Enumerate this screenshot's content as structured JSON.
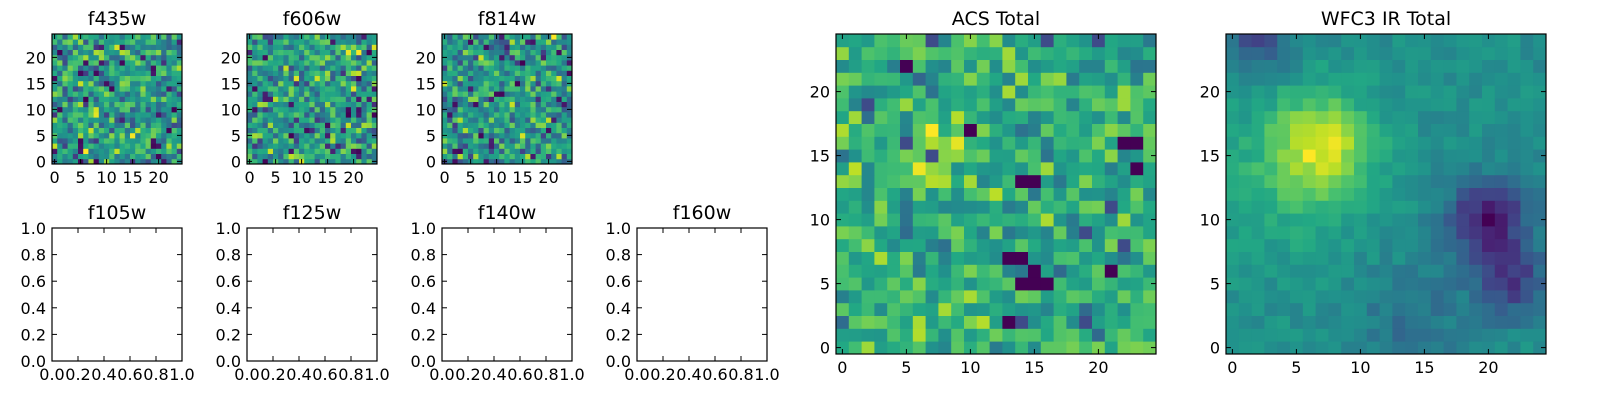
{
  "chart_data": [
    {
      "type": "heatmap",
      "title": "f435w",
      "xlim": [
        -0.5,
        24.5
      ],
      "ylim": [
        -0.5,
        24.5
      ],
      "x_ticks": [
        "0",
        "5",
        "10",
        "15",
        "20"
      ],
      "y_ticks": [
        "0",
        "5",
        "10",
        "15",
        "20"
      ],
      "grid_size": [
        25,
        25
      ],
      "values": "pseudo-random noise field, no visible structure",
      "colormap": "viridis"
    },
    {
      "type": "heatmap",
      "title": "f606w",
      "xlim": [
        -0.5,
        24.5
      ],
      "ylim": [
        -0.5,
        24.5
      ],
      "x_ticks": [
        "0",
        "5",
        "10",
        "15",
        "20"
      ],
      "y_ticks": [
        "0",
        "5",
        "10",
        "15",
        "20"
      ],
      "grid_size": [
        25,
        25
      ],
      "values": "pseudo-random noise field, no visible structure",
      "colormap": "viridis"
    },
    {
      "type": "heatmap",
      "title": "f814w",
      "xlim": [
        -0.5,
        24.5
      ],
      "ylim": [
        -0.5,
        24.5
      ],
      "x_ticks": [
        "0",
        "5",
        "10",
        "15",
        "20"
      ],
      "y_ticks": [
        "0",
        "5",
        "10",
        "15",
        "20"
      ],
      "grid_size": [
        25,
        25
      ],
      "values": "pseudo-random noise field, no visible structure",
      "colormap": "viridis"
    },
    {
      "type": "heatmap",
      "title": "f105w",
      "xlim": [
        0,
        1
      ],
      "ylim": [
        0,
        1
      ],
      "x_ticks": [
        "0.0",
        "0.2",
        "0.4",
        "0.6",
        "0.8",
        "1.0"
      ],
      "y_ticks": [
        "0.0",
        "0.2",
        "0.4",
        "0.6",
        "0.8",
        "1.0"
      ],
      "empty": true
    },
    {
      "type": "heatmap",
      "title": "f125w",
      "xlim": [
        0,
        1
      ],
      "ylim": [
        0,
        1
      ],
      "x_ticks": [
        "0.0",
        "0.2",
        "0.4",
        "0.6",
        "0.8",
        "1.0"
      ],
      "y_ticks": [
        "0.0",
        "0.2",
        "0.4",
        "0.6",
        "0.8",
        "1.0"
      ],
      "empty": true
    },
    {
      "type": "heatmap",
      "title": "f140w",
      "xlim": [
        0,
        1
      ],
      "ylim": [
        0,
        1
      ],
      "x_ticks": [
        "0.0",
        "0.2",
        "0.4",
        "0.6",
        "0.8",
        "1.0"
      ],
      "y_ticks": [
        "0.0",
        "0.2",
        "0.4",
        "0.6",
        "0.8",
        "1.0"
      ],
      "empty": true
    },
    {
      "type": "heatmap",
      "title": "f160w",
      "xlim": [
        0,
        1
      ],
      "ylim": [
        0,
        1
      ],
      "x_ticks": [
        "0.0",
        "0.2",
        "0.4",
        "0.6",
        "0.8",
        "1.0"
      ],
      "y_ticks": [
        "0.0",
        "0.2",
        "0.4",
        "0.6",
        "0.8",
        "1.0"
      ],
      "empty": true
    },
    {
      "type": "heatmap",
      "title": "ACS Total",
      "xlim": [
        -0.5,
        24.5
      ],
      "ylim": [
        -0.5,
        24.5
      ],
      "x_ticks": [
        "0",
        "5",
        "10",
        "15",
        "20"
      ],
      "y_ticks": [
        "0",
        "5",
        "10",
        "15",
        "20"
      ],
      "grid_size": [
        25,
        25
      ],
      "values": "noise field with dark spots near (13-16, 5-8) and (5,22)",
      "colormap": "viridis"
    },
    {
      "type": "heatmap",
      "title": "WFC3 IR Total",
      "xlim": [
        -0.5,
        24.5
      ],
      "ylim": [
        -0.5,
        24.5
      ],
      "x_ticks": [
        "0",
        "5",
        "10",
        "15",
        "20"
      ],
      "y_ticks": [
        "0",
        "5",
        "10",
        "15",
        "20"
      ],
      "grid_size": [
        25,
        25
      ],
      "values": "smooth field, bright blob near (7,16), dark region lower right (18-24, 3-13)",
      "colormap": "viridis"
    }
  ]
}
